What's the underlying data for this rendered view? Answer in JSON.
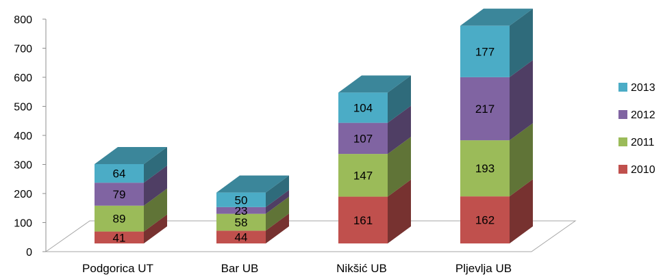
{
  "chart_data": {
    "type": "bar",
    "stacked": true,
    "three_d": true,
    "categories": [
      "Podgorica UT",
      "Bar UB",
      "Nikšić UB",
      "Pljevlja UB"
    ],
    "series": [
      {
        "name": "2010",
        "values": [
          41,
          44,
          161,
          162
        ],
        "color": "#c0504d"
      },
      {
        "name": "2011",
        "values": [
          89,
          58,
          147,
          193
        ],
        "color": "#9bbb59"
      },
      {
        "name": "2012",
        "values": [
          79,
          23,
          107,
          217
        ],
        "color": "#8064a2"
      },
      {
        "name": "2013",
        "values": [
          64,
          50,
          104,
          177
        ],
        "color": "#4bacc6"
      }
    ],
    "ylim": [
      0,
      800
    ],
    "yticks": [
      0,
      100,
      200,
      300,
      400,
      500,
      600,
      700,
      800
    ],
    "legend_position": "right",
    "legend_order": [
      "2013",
      "2012",
      "2011",
      "2010"
    ],
    "grid": false
  }
}
